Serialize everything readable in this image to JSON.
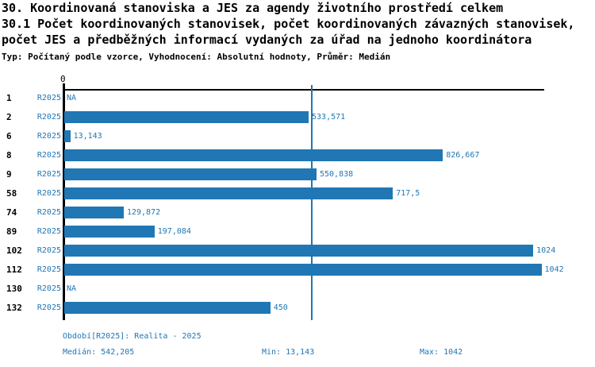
{
  "title": {
    "line1": "30. Koordinovaná stanoviska a JES za agendy životního prostředí celkem",
    "line2": "30.1 Počet koordinovaných stanovisek, počet koordinovaných závazných stanovisek,",
    "line3": "počet JES a předběžných informací vydaných za úřad na jednoho koordinátora",
    "subtitle": "Typ: Počítaný podle vzorce, Vyhodnocení: Absolutní hodnoty, Průměr: Medián"
  },
  "colors": {
    "bar": "#2077b4",
    "label_blue": "#2077b4",
    "axis_black": "#000000"
  },
  "chart_data": {
    "type": "bar",
    "orientation": "horizontal",
    "title": "30. Koordinovaná stanoviska a JES za agendy životního prostředí celkem",
    "axis_zero_label": "0",
    "xlim": [
      0,
      1048
    ],
    "grid": false,
    "series_label": "R2025",
    "categories": [
      "1",
      "2",
      "6",
      "8",
      "9",
      "58",
      "74",
      "89",
      "102",
      "112",
      "130",
      "132"
    ],
    "values": [
      null,
      533.571,
      13.143,
      826.667,
      550.838,
      717.5,
      129.872,
      197.084,
      1024,
      1042,
      null,
      450
    ],
    "value_labels": [
      "NA",
      "533,571",
      "13,143",
      "826,667",
      "550,838",
      "717,5",
      "129,872",
      "197,084",
      "1024",
      "1042",
      "NA",
      "450"
    ],
    "median": 542.205,
    "median_label": "542,205",
    "min": 13.143,
    "max": 1042
  },
  "footer": {
    "period": "Období[R2025]: Realita - 2025",
    "median": "Medián: 542,205",
    "min": "Min: 13,143",
    "max": "Max: 1042"
  }
}
